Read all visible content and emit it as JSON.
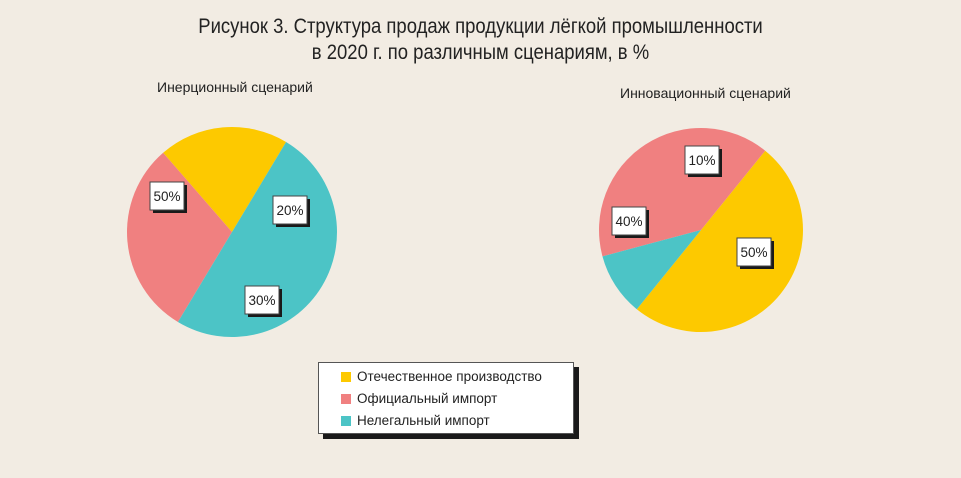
{
  "title_lines": [
    "Рисунок 3. Структура продаж продукции лёгкой промышленности",
    "в 2020 г. по различным сценариям, в %"
  ],
  "colors": {
    "domestic": "#fdc900",
    "official": "#f08080",
    "illegal": "#4cc4c6"
  },
  "chart_data": {
    "type": "pie",
    "title": "Рисунок 3. Структура продаж продукции лёгкой промышленности в 2020 г. по различным сценариям, в %",
    "legend": {
      "placement": "bottom-center",
      "entries": [
        "Отечественное производство",
        "Официальный импорт",
        "Нелегальный импорт"
      ]
    },
    "charts": [
      {
        "name": "Инерционный сценарий",
        "slices": [
          {
            "label": "Отечественное производство",
            "value": 20,
            "display": "20%"
          },
          {
            "label": "Официальный импорт",
            "value": 30,
            "display": "30%"
          },
          {
            "label": "Нелегальный импорт",
            "value": 50,
            "display": "50%"
          }
        ]
      },
      {
        "name": "Инновационный сценарий",
        "slices": [
          {
            "label": "Отечественное производство",
            "value": 50,
            "display": "50%"
          },
          {
            "label": "Официальный импорт",
            "value": 40,
            "display": "40%"
          },
          {
            "label": "Нелегальный импорт",
            "value": 10,
            "display": "10%"
          }
        ]
      }
    ]
  }
}
